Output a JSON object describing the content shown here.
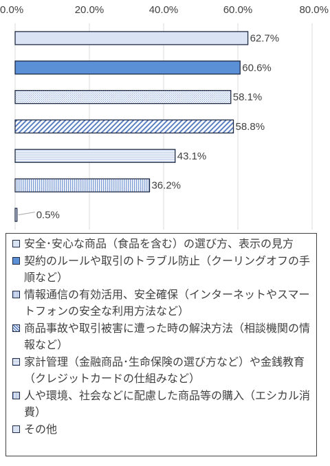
{
  "chart_data": {
    "type": "bar",
    "orientation": "horizontal",
    "categories": [
      "安全･安心な商品（食品を含む）の選び方、表示の見方",
      "契約のルールや取引のトラブル防止（クーリングオフの手順など）",
      "情報通信の有効活用、安全確保（インターネットやスマートフォンの安全な利用方法など）",
      "商品事故や取引被害に遭った時の解決方法（相談機関の情報など）",
      "家計管理（金融商品･生命保険の選び方など）や金銭教育（クレジットカードの仕組みなど）",
      "人や環境、社会などに配慮した商品等の購入（エシカル消費）",
      "その他"
    ],
    "values": [
      62.7,
      60.6,
      58.1,
      58.8,
      43.1,
      36.2,
      0.5
    ],
    "value_labels": [
      "62.7%",
      "60.6%",
      "58.1%",
      "58.8%",
      "43.1%",
      "36.2%",
      "0.5%"
    ],
    "xlim": [
      0,
      80
    ],
    "xticks": [
      0,
      20,
      40,
      60,
      80
    ],
    "xtick_labels": [
      "0.0%",
      "20.0%",
      "40.0%",
      "60.0%",
      "80.0%"
    ],
    "xaxis_position": "top",
    "grid": true,
    "legend_position": "bottom",
    "colors": {
      "border": "#1f2a44",
      "gridline": "#d9d9d9",
      "bar_fill_1": "#dae3f3",
      "bar_fill_2": "#5b8fd6",
      "pattern_color": "#8eaadb"
    },
    "bar_styles": [
      "light-solid",
      "solid-blue",
      "fine-dots",
      "diagonal-hatch",
      "horizontal-lines",
      "vertical-lines",
      "light-solid"
    ]
  },
  "legend": {
    "items": [
      "安全･安心な商品（食品を含む）の選び方、表示の見方",
      "契約のルールや取引のトラブル防止（クーリングオフの手順など）",
      "情報通信の有効活用、安全確保（インターネットやスマートフォンの安全な利用方法など）",
      "商品事故や取引被害に遭った時の解決方法（相談機関の情報など）",
      "家計管理（金融商品･生命保険の選び方など）や金銭教育（クレジットカードの仕組みなど）",
      "人や環境、社会などに配慮した商品等の購入（エシカル消費）",
      "その他"
    ]
  }
}
